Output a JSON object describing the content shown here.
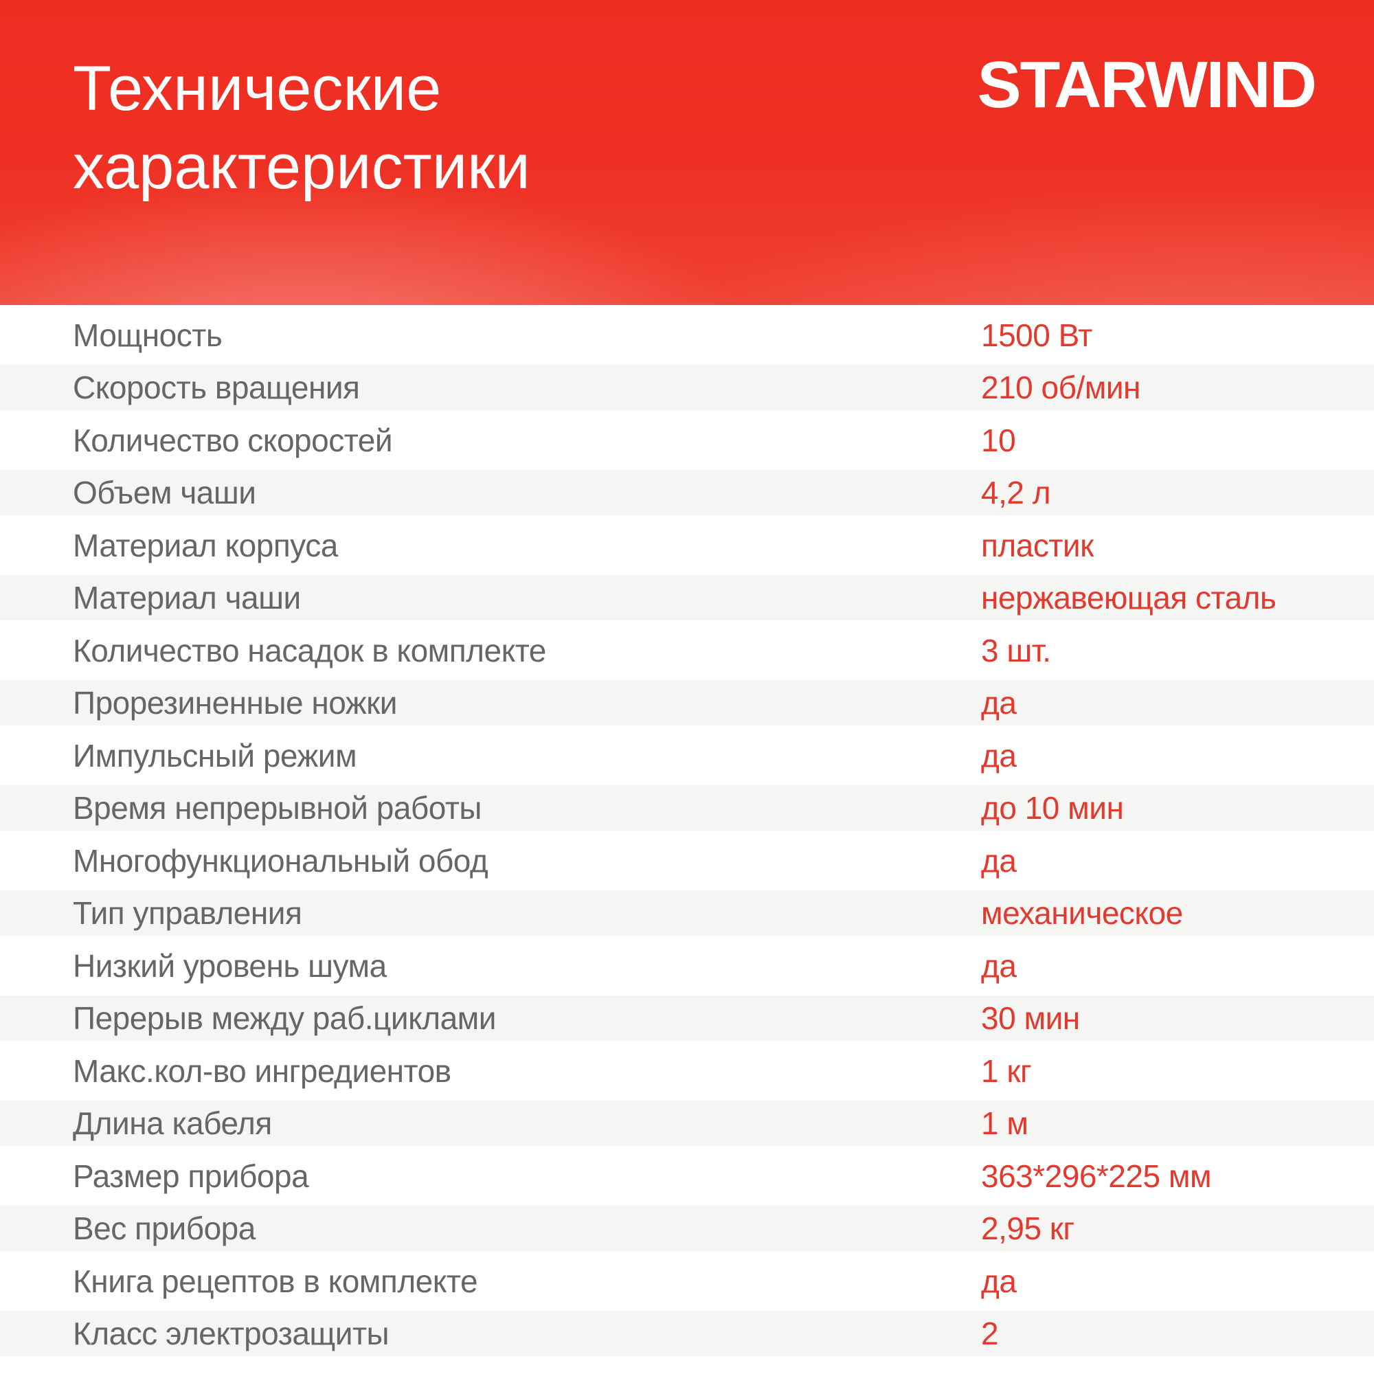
{
  "header": {
    "title_lines": [
      "Технические",
      "характеристики"
    ],
    "brand": "STARWIND"
  },
  "colors": {
    "header_red": "#ee3124",
    "header_red_top": "#ee2d21",
    "header_red_bottom": "#ef4032",
    "value_red": "#e23a2e",
    "label_gray": "#666666",
    "row_alt_bg": "#f5f5f4"
  },
  "table": {
    "rows": [
      {
        "label": "Мощность",
        "value": "1500 Вт"
      },
      {
        "label": "Скорость вращения",
        "value": "210 об/мин"
      },
      {
        "label": "Количество скоростей",
        "value": "10"
      },
      {
        "label": "Объем чаши",
        "value": "4,2 л"
      },
      {
        "label": "Материал корпуса",
        "value": "пластик"
      },
      {
        "label": "Материал чаши",
        "value": "нержавеющая сталь"
      },
      {
        "label": "Количество насадок в комплекте",
        "value": "3 шт."
      },
      {
        "label": "Прорезиненные ножки",
        "value": "да"
      },
      {
        "label": "Импульсный режим",
        "value": "да"
      },
      {
        "label": "Время непрерывной работы",
        "value": "до 10 мин"
      },
      {
        "label": "Многофункциональный обод",
        "value": "да"
      },
      {
        "label": "Тип управления",
        "value": "механическое"
      },
      {
        "label": "Низкий уровень шума",
        "value": "да"
      },
      {
        "label": "Перерыв между раб.циклами",
        "value": "30 мин"
      },
      {
        "label": "Макс.кол-во ингредиентов",
        "value": "1 кг"
      },
      {
        "label": "Длина кабеля",
        "value": "1 м"
      },
      {
        "label": "Размер прибора",
        "value": "363*296*225 мм"
      },
      {
        "label": "Вес прибора",
        "value": "2,95 кг"
      },
      {
        "label": "Книга рецептов в комплекте",
        "value": "да"
      },
      {
        "label": "Класс электрозащиты",
        "value": "2"
      }
    ]
  }
}
